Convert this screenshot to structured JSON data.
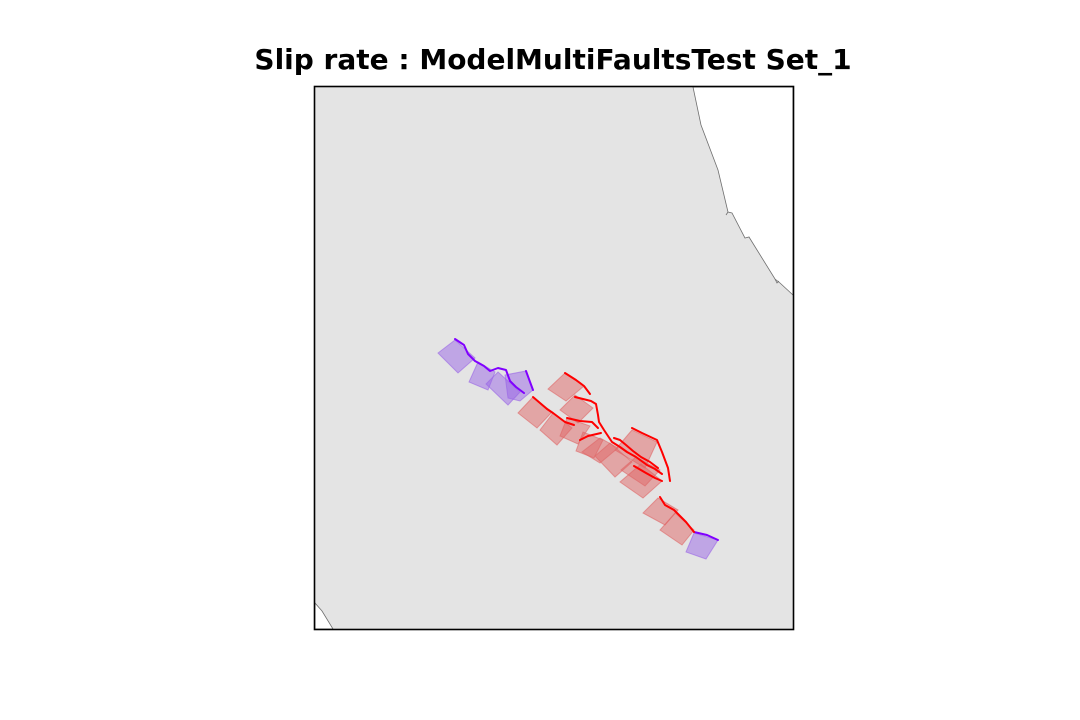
{
  "title": "Slip rate : ModelMultiFaultsTest Set_1",
  "colors": {
    "land": "#e4e4e4",
    "sea": "#ffffff",
    "coastline": "#6e6e6e",
    "frame": "#000000",
    "fault_high_slip": "#ff0000",
    "fault_low_slip": "#8000ff",
    "plane_high_slip": "#e06666",
    "plane_low_slip": "#9966e6"
  },
  "legend": null
}
